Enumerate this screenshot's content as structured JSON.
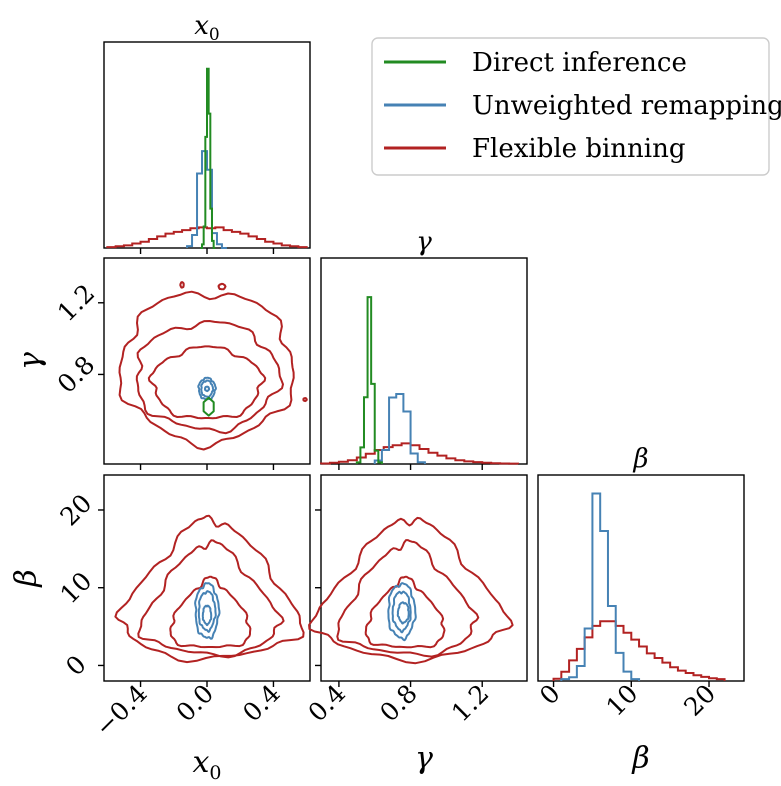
{
  "colors": {
    "direct": "#228b22",
    "unweighted": "#4682b4",
    "flexible": "#b22222"
  },
  "legend": {
    "items": [
      {
        "label": "Direct inference",
        "color": "#228b22"
      },
      {
        "label": "Unweighted remapping",
        "color": "#4682b4"
      },
      {
        "label": "Flexible binning",
        "color": "#b22222"
      }
    ]
  },
  "params": [
    "x_0",
    "γ",
    "β"
  ],
  "titles": {
    "x0": "x",
    "x0_sub": "0",
    "gamma": "γ",
    "beta": "β"
  },
  "axis_labels": {
    "x0": "x",
    "x0_sub": "0",
    "gamma": "γ",
    "beta": "β"
  },
  "chart_data": {
    "type": "corner",
    "ranges": {
      "x0": [
        -0.62,
        0.62
      ],
      "gamma": [
        0.3,
        1.45
      ],
      "beta": [
        -2,
        24.5
      ]
    },
    "ticks": {
      "x0": {
        "values": [
          -0.4,
          0.0,
          0.4
        ],
        "labels": [
          "−0.4",
          "0.0",
          "0.4"
        ]
      },
      "gamma": {
        "values": [
          0.4,
          0.8,
          1.2
        ],
        "labels": [
          "0.4",
          "0.8",
          "1.2"
        ]
      },
      "gamma_left": {
        "values": [
          0.8,
          1.2
        ],
        "labels": [
          "0.8",
          "1.2"
        ]
      },
      "beta": {
        "values": [
          0,
          10,
          20
        ],
        "labels": [
          "0",
          "10",
          "20"
        ]
      }
    },
    "histograms": {
      "x0": {
        "direct": {
          "bins": [
            -0.04,
            -0.03,
            -0.02,
            -0.01,
            0.0,
            0.01,
            0.02,
            0.03,
            0.04,
            0.05
          ],
          "counts": [
            0,
            2,
            12,
            62,
            100,
            75,
            22,
            4,
            0
          ]
        },
        "unweighted": {
          "bins": [
            -0.12,
            -0.09,
            -0.06,
            -0.03,
            0.0,
            0.03,
            0.06,
            0.09,
            0.12
          ],
          "counts": [
            1,
            7,
            40,
            52,
            42,
            8,
            2,
            0
          ]
        },
        "flexible": {
          "bins": [
            -0.6,
            -0.55,
            -0.5,
            -0.45,
            -0.4,
            -0.35,
            -0.3,
            -0.25,
            -0.2,
            -0.15,
            -0.1,
            -0.05,
            0.0,
            0.05,
            0.1,
            0.15,
            0.2,
            0.25,
            0.3,
            0.35,
            0.4,
            0.45,
            0.5,
            0.55,
            0.6
          ],
          "counts": [
            0.5,
            1,
            1.5,
            2.5,
            3.5,
            5,
            6.5,
            8,
            9,
            10,
            11,
            11.5,
            11,
            11.5,
            10,
            9,
            8,
            6.5,
            5,
            3.5,
            2.5,
            1.5,
            1,
            0.5
          ]
        }
      },
      "gamma": {
        "direct": {
          "bins": [
            0.5,
            0.52,
            0.54,
            0.56,
            0.58,
            0.6,
            0.62,
            0.64
          ],
          "counts": [
            1,
            10,
            40,
            100,
            48,
            8,
            1
          ]
        },
        "unweighted": {
          "bins": [
            0.6,
            0.64,
            0.68,
            0.72,
            0.76,
            0.8,
            0.84,
            0.88
          ],
          "counts": [
            2,
            8,
            38,
            40,
            30,
            6,
            1
          ]
        },
        "flexible": {
          "bins": [
            0.3,
            0.35,
            0.4,
            0.45,
            0.5,
            0.55,
            0.6,
            0.65,
            0.7,
            0.75,
            0.8,
            0.85,
            0.9,
            0.95,
            1.0,
            1.05,
            1.1,
            1.15,
            1.2,
            1.25,
            1.3,
            1.35,
            1.4
          ],
          "counts": [
            0.3,
            0.7,
            1.2,
            2,
            3.5,
            5.5,
            7.5,
            9,
            10,
            11,
            10,
            8,
            6,
            4.5,
            3,
            2,
            1.4,
            1,
            0.7,
            0.4,
            0.3,
            0.2
          ]
        }
      },
      "beta": {
        "unweighted": {
          "bins": [
            1,
            2,
            3,
            4,
            5,
            6,
            7,
            8,
            9,
            10,
            11
          ],
          "counts": [
            1,
            2,
            8,
            28,
            100,
            80,
            40,
            15,
            5,
            1
          ]
        },
        "flexible": {
          "bins": [
            0,
            1,
            2,
            3,
            4,
            5,
            6,
            7,
            8,
            9,
            10,
            11,
            12,
            13,
            14,
            15,
            16,
            17,
            18,
            19,
            20,
            21,
            22
          ],
          "counts": [
            1,
            4,
            9,
            14,
            19,
            24,
            26,
            26,
            24,
            21,
            18,
            15,
            12,
            10,
            8,
            6,
            4.5,
            3.5,
            2.5,
            1.8,
            1.2,
            0.8
          ]
        }
      }
    },
    "contours": {
      "gamma_vs_x0": {
        "direct": [
          {
            "cx": 0.01,
            "cy": 0.62,
            "rx": 0.035,
            "ry": 0.05,
            "shape": "hex"
          }
        ],
        "unweighted": [
          {
            "cx": 0.0,
            "cy": 0.72,
            "rx": 0.05,
            "ry": 0.06
          },
          {
            "cx": 0.0,
            "cy": 0.72,
            "rx": 0.035,
            "ry": 0.045
          },
          {
            "cx": 0.0,
            "cy": 0.72,
            "rx": 0.012,
            "ry": 0.012
          }
        ],
        "flexible": [
          {
            "cx": 0.0,
            "cy": 0.75,
            "rx": 0.33,
            "ry": 0.2
          },
          {
            "cx": 0.0,
            "cy": 0.79,
            "rx": 0.43,
            "ry": 0.3
          },
          {
            "cx": 0.0,
            "cy": 0.84,
            "rx": 0.52,
            "ry": 0.42
          },
          {
            "cx": -0.15,
            "cy": 1.3,
            "rx": 0.01,
            "ry": 0.015
          },
          {
            "cx": 0.09,
            "cy": 1.29,
            "rx": 0.02,
            "ry": 0.015
          },
          {
            "cx": 0.59,
            "cy": 0.66,
            "rx": 0.01,
            "ry": 0.008
          }
        ]
      },
      "beta_vs_x0": {
        "unweighted": [
          {
            "cx": 0.0,
            "cy": 7.0,
            "rx": 0.07,
            "ry": 3.5
          },
          {
            "cx": 0.0,
            "cy": 7.0,
            "rx": 0.05,
            "ry": 2.5
          },
          {
            "cx": 0.0,
            "cy": 6.5,
            "rx": 0.025,
            "ry": 1.2
          }
        ],
        "flexible": [
          {
            "cx": 0.02,
            "cy": 6.0,
            "rx": 0.22,
            "ry": 5.0,
            "shape": "tri"
          },
          {
            "cx": 0.02,
            "cy": 7.5,
            "rx": 0.37,
            "ry": 8.0,
            "shape": "tri"
          },
          {
            "cx": 0.02,
            "cy": 8.5,
            "rx": 0.48,
            "ry": 10.0,
            "shape": "tri"
          }
        ]
      },
      "beta_vs_gamma": {
        "unweighted": [
          {
            "cx": 0.75,
            "cy": 7.0,
            "rx": 0.075,
            "ry": 3.5
          },
          {
            "cx": 0.75,
            "cy": 7.0,
            "rx": 0.05,
            "ry": 2.5
          },
          {
            "cx": 0.76,
            "cy": 6.8,
            "rx": 0.03,
            "ry": 1.3
          }
        ],
        "flexible": [
          {
            "cx": 0.77,
            "cy": 6.0,
            "rx": 0.2,
            "ry": 5.0,
            "shape": "tri"
          },
          {
            "cx": 0.78,
            "cy": 7.5,
            "rx": 0.34,
            "ry": 8.0,
            "shape": "tri"
          },
          {
            "cx": 0.8,
            "cy": 8.5,
            "rx": 0.47,
            "ry": 10.0,
            "shape": "tri"
          }
        ]
      }
    }
  }
}
